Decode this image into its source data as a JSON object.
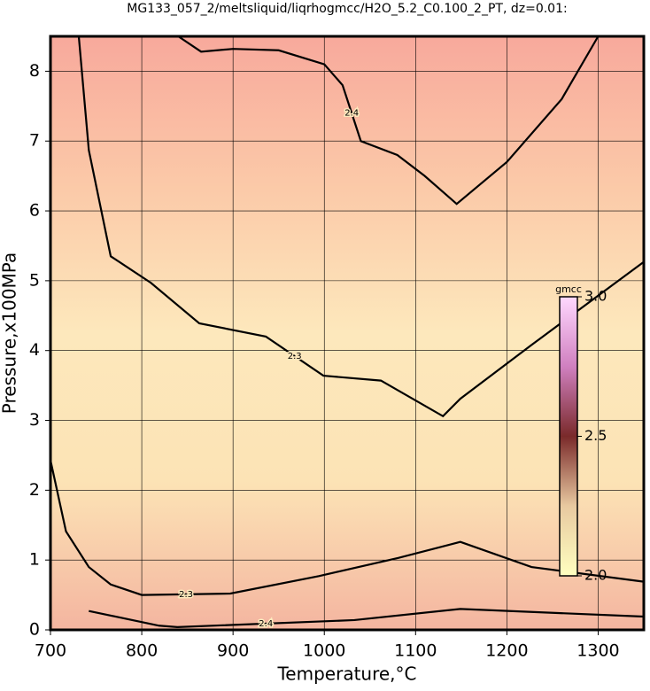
{
  "chart_data": {
    "type": "contour",
    "title": "MG133_057_2/meltsliquid/liqrhogmcc/H2O_5.2_C0.100_2_PT, dz=0.01:",
    "x_label": "Temperature,°C",
    "y_label": "Pressure,x100MPa",
    "xlim": [
      700,
      1350
    ],
    "ylim": [
      0,
      8.5
    ],
    "xticks": [
      700,
      800,
      900,
      1000,
      1100,
      1200,
      1300
    ],
    "yticks": [
      0,
      1,
      2,
      3,
      4,
      5,
      6,
      7,
      8
    ],
    "grid": true,
    "background_colors": [
      "#f8a99c",
      "#fbc9a8",
      "#fde8bc",
      "#fce3b5",
      "#f4b5a0"
    ],
    "contours": [
      {
        "level": 2.4,
        "color": "#000000",
        "x": [
          840,
          865,
          900,
          950,
          1000,
          1020,
          1040,
          1080,
          1110,
          1145,
          1200,
          1260,
          1300
        ],
        "y": [
          8.5,
          8.28,
          8.32,
          8.3,
          8.1,
          7.8,
          7.0,
          6.8,
          6.5,
          6.1,
          6.7,
          7.6,
          8.5
        ]
      },
      {
        "level": 2.3,
        "color": "#000000",
        "x": [
          731,
          742,
          766,
          810,
          863,
          936,
          999,
          1062,
          1130,
          1149,
          1227,
          1350
        ],
        "y": [
          8.5,
          6.87,
          5.35,
          4.97,
          4.39,
          4.2,
          3.64,
          3.57,
          3.06,
          3.31,
          4.08,
          5.27
        ]
      },
      {
        "level": 2.3,
        "color": "#000000",
        "x": [
          700,
          717,
          742,
          766,
          800,
          897,
          994,
          1081,
          1149,
          1227,
          1350
        ],
        "y": [
          2.43,
          1.41,
          0.9,
          0.65,
          0.5,
          0.52,
          0.77,
          1.03,
          1.26,
          0.9,
          0.69
        ]
      },
      {
        "level": 2.4,
        "color": "#000000",
        "x": [
          742,
          819,
          839,
          1033,
          1149,
          1350
        ],
        "y": [
          0.27,
          0.06,
          0.04,
          0.14,
          0.3,
          0.19
        ]
      }
    ],
    "colorbar": {
      "label": "gmcc",
      "colors": [
        "#ffffc0",
        "#e8c9a0",
        "#7a2a2a",
        "#d080c0",
        "#ffd8ff"
      ],
      "lim": [
        2,
        3
      ],
      "ticks": [
        {
          "value": 2,
          "label": "2.0"
        },
        {
          "value": 2.5,
          "label": "2.5"
        },
        {
          "value": 3,
          "label": "3.0"
        }
      ]
    }
  }
}
